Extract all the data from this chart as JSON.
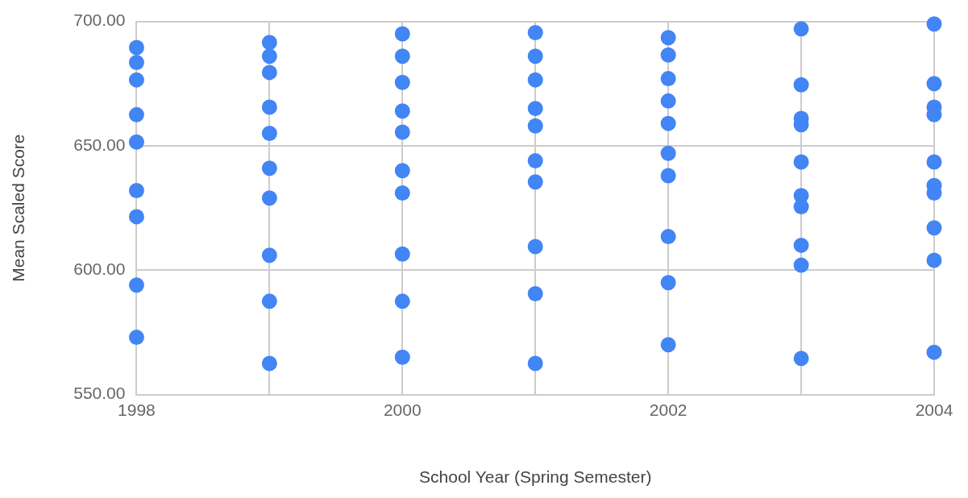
{
  "chart_data": {
    "type": "scatter",
    "xlabel": "School Year (Spring Semester)",
    "ylabel": "Mean Scaled Score",
    "x": [
      1998,
      1998,
      1998,
      1998,
      1998,
      1998,
      1998,
      1998,
      1998,
      1999,
      1999,
      1999,
      1999,
      1999,
      1999,
      1999,
      1999,
      1999,
      1999,
      2000,
      2000,
      2000,
      2000,
      2000,
      2000,
      2000,
      2000,
      2000,
      2000,
      2001,
      2001,
      2001,
      2001,
      2001,
      2001,
      2001,
      2001,
      2001,
      2001,
      2002,
      2002,
      2002,
      2002,
      2002,
      2002,
      2002,
      2002,
      2002,
      2002,
      2003,
      2003,
      2003,
      2003,
      2003,
      2003,
      2003,
      2003,
      2003,
      2003,
      2004,
      2004,
      2004,
      2004,
      2004,
      2004,
      2004,
      2004,
      2004,
      2004
    ],
    "series": [
      {
        "color": "#4285f4",
        "values": [
          689.5,
          683.5,
          676.5,
          662.5,
          651.5,
          632,
          621.5,
          594,
          573,
          691.5,
          686,
          679.5,
          665.5,
          655,
          641,
          629,
          606,
          587.5,
          562.5,
          695,
          686,
          675.5,
          664,
          655.5,
          640,
          631,
          606.5,
          587.5,
          565,
          695.5,
          686,
          676.5,
          665,
          658,
          644,
          635.5,
          609.5,
          590.5,
          562.5,
          693.5,
          686.5,
          677,
          668,
          659,
          647,
          638,
          613.5,
          595,
          570,
          697,
          674.5,
          661,
          658.5,
          643.5,
          630,
          625.5,
          610,
          602,
          564.5,
          699,
          675,
          665.5,
          662.5,
          643.5,
          634,
          631,
          617,
          604,
          567
        ]
      }
    ],
    "xlim": [
      1998,
      2004
    ],
    "xticks": [
      1998,
      {
        "value": 1999,
        "label": null
      },
      2000,
      {
        "value": 2001,
        "label": null
      },
      2002,
      {
        "value": 2003,
        "label": null
      },
      2004
    ],
    "ylim": [
      550,
      700
    ],
    "yticks": [
      {
        "value": 550,
        "label": "550.00"
      },
      {
        "value": 600,
        "label": "600.00"
      },
      {
        "value": 650,
        "label": "650.00"
      },
      {
        "value": 700,
        "label": "700.00"
      }
    ],
    "grid": true,
    "legend": false,
    "marker": "circle"
  }
}
